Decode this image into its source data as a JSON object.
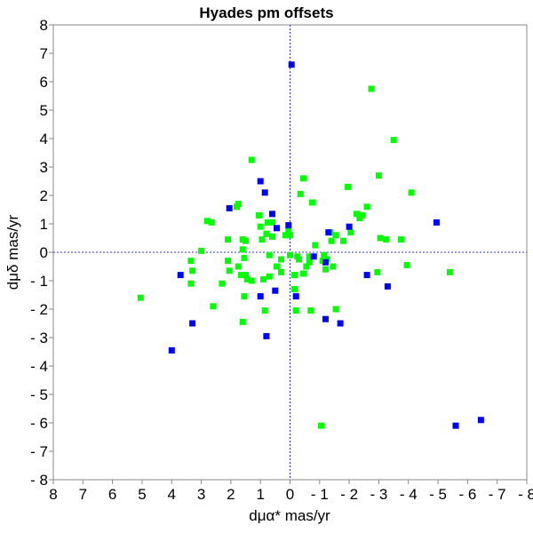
{
  "chart_data": {
    "type": "scatter",
    "title": "Hyades pm offsets",
    "xlabel": "dμα* mas/yr",
    "ylabel": "dμδ mas/yr",
    "xlim": [
      8,
      -8
    ],
    "ylim": [
      -8,
      8
    ],
    "x_reversed": true,
    "x_ticks": [
      8,
      7,
      6,
      5,
      4,
      3,
      2,
      1,
      0,
      -1,
      -2,
      -3,
      -4,
      -5,
      -6,
      -7,
      -8
    ],
    "x_tick_labels": [
      "8",
      "7",
      "6",
      "5",
      "4",
      "3",
      "2",
      "1",
      "0",
      "- 1",
      "- 2",
      "- 3",
      "- 4",
      "- 5",
      "- 6",
      "- 7",
      "- 8"
    ],
    "y_ticks": [
      8,
      7,
      6,
      5,
      4,
      3,
      2,
      1,
      0,
      -1,
      -2,
      -3,
      -4,
      -5,
      -6,
      -7,
      -8
    ],
    "y_tick_labels": [
      "8",
      "7",
      "6",
      "5",
      "4",
      "3",
      "2",
      "1",
      "0",
      "- 1",
      "- 2",
      "- 3",
      "- 4",
      "- 5",
      "- 6",
      "- 7",
      "- 8"
    ],
    "grid": false,
    "zero_lines": true,
    "colors": {
      "green": "#00ff00",
      "blue": "#0000ff",
      "zero_line": "#3333cc",
      "frame": "#888888"
    },
    "series": [
      {
        "color": "#00ff00",
        "points": [
          [
            5.05,
            -1.6
          ],
          [
            3.35,
            -1.1
          ],
          [
            3.35,
            -0.3
          ],
          [
            3.3,
            -0.65
          ],
          [
            3.0,
            0.05
          ],
          [
            2.8,
            1.1
          ],
          [
            2.65,
            1.05
          ],
          [
            2.6,
            -1.9
          ],
          [
            2.3,
            -1.1
          ],
          [
            2.1,
            -0.3
          ],
          [
            2.1,
            0.45
          ],
          [
            2.05,
            -0.65
          ],
          [
            1.8,
            1.6
          ],
          [
            1.75,
            1.7
          ],
          [
            1.75,
            -0.5
          ],
          [
            1.65,
            -0.8
          ],
          [
            1.6,
            0.45
          ],
          [
            1.6,
            0.1
          ],
          [
            1.6,
            -2.45
          ],
          [
            1.55,
            -1.55
          ],
          [
            1.55,
            -0.2
          ],
          [
            1.5,
            0.4
          ],
          [
            1.5,
            -0.8
          ],
          [
            1.45,
            -0.95
          ],
          [
            1.3,
            3.25
          ],
          [
            1.3,
            -1.0
          ],
          [
            1.05,
            1.3
          ],
          [
            1.0,
            0.9
          ],
          [
            0.95,
            0.45
          ],
          [
            0.9,
            -0.95
          ],
          [
            0.85,
            -2.05
          ],
          [
            0.8,
            0.65
          ],
          [
            0.75,
            1.05
          ],
          [
            0.7,
            -0.1
          ],
          [
            0.7,
            -0.85
          ],
          [
            0.6,
            1.05
          ],
          [
            0.6,
            0.55
          ],
          [
            0.45,
            -0.5
          ],
          [
            0.3,
            -0.25
          ],
          [
            0.3,
            -0.7
          ],
          [
            0.15,
            0.6
          ],
          [
            0.05,
            0.75
          ],
          [
            0.0,
            -0.1
          ],
          [
            0.0,
            0.6
          ],
          [
            -0.15,
            -0.8
          ],
          [
            -0.15,
            -1.3
          ],
          [
            -0.2,
            -2.05
          ],
          [
            -0.25,
            -0.15
          ],
          [
            -0.3,
            -0.25
          ],
          [
            -0.35,
            2.05
          ],
          [
            -0.45,
            2.6
          ],
          [
            -0.45,
            -0.75
          ],
          [
            -0.55,
            -0.5
          ],
          [
            -0.65,
            -0.15
          ],
          [
            -0.65,
            -0.35
          ],
          [
            -0.7,
            -2.05
          ],
          [
            -0.75,
            1.75
          ],
          [
            -0.85,
            0.25
          ],
          [
            -1.05,
            -6.1
          ],
          [
            -1.1,
            -0.3
          ],
          [
            -1.15,
            -0.1
          ],
          [
            -1.2,
            -0.6
          ],
          [
            -1.25,
            -0.25
          ],
          [
            -1.35,
            0.7
          ],
          [
            -1.4,
            0.4
          ],
          [
            -1.45,
            -0.5
          ],
          [
            -1.55,
            -2.0
          ],
          [
            -1.55,
            0.6
          ],
          [
            -1.8,
            0.4
          ],
          [
            -1.95,
            2.3
          ],
          [
            -2.05,
            0.7
          ],
          [
            -2.25,
            1.35
          ],
          [
            -2.35,
            1.2
          ],
          [
            -2.45,
            1.3
          ],
          [
            -2.6,
            1.6
          ],
          [
            -2.75,
            5.75
          ],
          [
            -2.95,
            -0.7
          ],
          [
            -3.05,
            0.5
          ],
          [
            -3.0,
            2.7
          ],
          [
            -3.25,
            0.45
          ],
          [
            -3.5,
            3.95
          ],
          [
            -3.75,
            0.45
          ],
          [
            -3.95,
            -0.45
          ],
          [
            -4.1,
            2.1
          ],
          [
            -5.4,
            -0.7
          ]
        ]
      },
      {
        "color": "#0000ff",
        "points": [
          [
            4.0,
            -3.45
          ],
          [
            3.7,
            -0.8
          ],
          [
            3.3,
            -2.5
          ],
          [
            2.05,
            1.55
          ],
          [
            1.0,
            2.5
          ],
          [
            1.0,
            -1.55
          ],
          [
            0.85,
            2.1
          ],
          [
            0.8,
            -2.95
          ],
          [
            0.6,
            1.35
          ],
          [
            0.5,
            -1.35
          ],
          [
            0.45,
            0.85
          ],
          [
            0.05,
            0.95
          ],
          [
            -0.05,
            6.6
          ],
          [
            -0.2,
            -1.55
          ],
          [
            -0.8,
            -0.15
          ],
          [
            -1.2,
            -0.35
          ],
          [
            -1.2,
            -2.35
          ],
          [
            -1.3,
            0.7
          ],
          [
            -1.7,
            -2.5
          ],
          [
            -2.0,
            0.9
          ],
          [
            -2.6,
            -0.8
          ],
          [
            -3.3,
            -1.2
          ],
          [
            -4.95,
            1.05
          ],
          [
            -5.6,
            -6.1
          ],
          [
            -6.45,
            -5.9
          ]
        ]
      }
    ]
  }
}
